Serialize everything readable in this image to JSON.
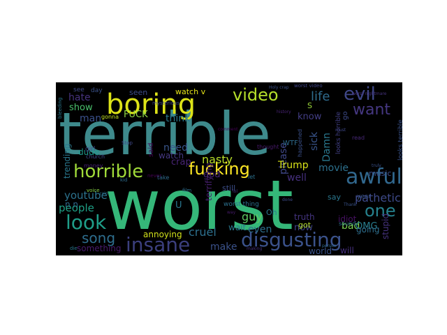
{
  "words": [
    {
      "text": "terrible",
      "color": "#3e8a8c"
    },
    {
      "text": "worst",
      "color": "#35b779"
    },
    {
      "text": "boring",
      "color": "#dde318"
    },
    {
      "text": "video",
      "color": "#b5de2b"
    },
    {
      "text": "evil",
      "color": "#3f4788"
    },
    {
      "text": "want",
      "color": "#453781"
    },
    {
      "text": "fucking",
      "color": "#fde725"
    },
    {
      "text": "horrible",
      "color": "#a0da39"
    },
    {
      "text": "awful",
      "color": "#31688e"
    },
    {
      "text": "disgusting",
      "color": "#3b528b"
    },
    {
      "text": "insane",
      "color": "#3b3f7d"
    },
    {
      "text": "look",
      "color": "#1f9e89"
    },
    {
      "text": "song",
      "color": "#2e6e8e"
    },
    {
      "text": "one",
      "color": "#26828e"
    },
    {
      "text": "youtube",
      "color": "#2c728e"
    },
    {
      "text": "people",
      "color": "#1fa187"
    },
    {
      "text": "pathetic",
      "color": "#3e4a89"
    },
    {
      "text": "life",
      "color": "#2f6c8e"
    },
    {
      "text": "hate",
      "color": "#46337e"
    },
    {
      "text": "show",
      "color": "#4ac16d"
    },
    {
      "text": "man",
      "color": "#3b518b"
    },
    {
      "text": "FUCK",
      "color": "#8fd744"
    },
    {
      "text": "think",
      "color": "#2a788e"
    },
    {
      "text": "need",
      "color": "#39568c"
    },
    {
      "text": "nasty",
      "color": "#b8de29"
    },
    {
      "text": "crap",
      "color": "#482475"
    },
    {
      "text": "sick",
      "color": "#39558c"
    },
    {
      "text": "Damn",
      "color": "#2a788e"
    },
    {
      "text": "know",
      "color": "#433e85"
    },
    {
      "text": "please",
      "color": "#3f4889"
    },
    {
      "text": "Trump",
      "color": "#d8e219"
    },
    {
      "text": "movie",
      "color": "#2d718e"
    },
    {
      "text": "well",
      "color": "#46307e"
    },
    {
      "text": "god",
      "color": "#482576"
    },
    {
      "text": "guy",
      "color": "#5ec962"
    },
    {
      "text": "even",
      "color": "#2e6f8e"
    },
    {
      "text": "bad",
      "color": "#7ad151"
    },
    {
      "text": "OMG",
      "color": "#287d8e"
    },
    {
      "text": "cruel",
      "color": "#2d708e"
    },
    {
      "text": "make",
      "color": "#3b528b"
    },
    {
      "text": "now",
      "color": "#404588"
    },
    {
      "text": "annoying",
      "color": "#d2e21b"
    },
    {
      "text": "something",
      "color": "#481a6c"
    },
    {
      "text": "wait",
      "color": "#2a788e"
    },
    {
      "text": "world",
      "color": "#3a538b"
    },
    {
      "text": "will",
      "color": "#46307e"
    },
    {
      "text": "going",
      "color": "#2e6e8e"
    },
    {
      "text": "stupid",
      "color": "#46337f"
    },
    {
      "text": "idiot",
      "color": "#471164"
    },
    {
      "text": "truth",
      "color": "#453581"
    },
    {
      "text": "got",
      "color": "#b5de2b"
    },
    {
      "text": "say",
      "color": "#2a778e"
    },
    {
      "text": "still",
      "color": "#3c4f8a"
    },
    {
      "text": "terrifying",
      "color": "#481f70"
    },
    {
      "text": "trending",
      "color": "#2a788e"
    },
    {
      "text": "dude",
      "color": "#1f988b"
    },
    {
      "text": "watch",
      "color": "#453882"
    },
    {
      "text": "watch v",
      "color": "#e5e419"
    },
    {
      "text": "seen",
      "color": "#3d4d8a"
    },
    {
      "text": "music",
      "color": "#3c4f8a"
    },
    {
      "text": "U",
      "color": "#2a768e"
    },
    {
      "text": "n n",
      "color": "#2f6b8e"
    },
    {
      "text": "S",
      "color": "#9dd93b"
    },
    {
      "text": "worst thing",
      "color": "#2c718e"
    },
    {
      "text": "looks terrible",
      "color": "#3a538b"
    },
    {
      "text": "looks horrible",
      "color": "#424086"
    },
    {
      "text": "Oh",
      "color": "#2a788e"
    },
    {
      "text": "go",
      "color": "#3e4c8a"
    },
    {
      "text": "said",
      "color": "#440154"
    },
    {
      "text": "girl",
      "color": "#3f4788"
    },
    {
      "text": "year",
      "color": "#3a548c"
    },
    {
      "text": "WTF",
      "color": "#2f6c8e"
    },
    {
      "text": "see",
      "color": "#3e4a89"
    },
    {
      "text": "day",
      "color": "#3b528b"
    },
    {
      "text": "church",
      "color": "#3f4889"
    },
    {
      "text": "money",
      "color": "#482173"
    },
    {
      "text": "gonna",
      "color": "#c2df23"
    },
    {
      "text": "let",
      "color": "#2c728e"
    },
    {
      "text": "thought",
      "color": "#481a6c"
    },
    {
      "text": "happened",
      "color": "#3b518b"
    },
    {
      "text": "read",
      "color": "#482878"
    },
    {
      "text": "sound",
      "color": "#2e6d8e"
    },
    {
      "text": "worst video",
      "color": "#404688"
    },
    {
      "text": "mysterious",
      "color": "#3f4788"
    },
    {
      "text": "take",
      "color": "#2f6b8e"
    },
    {
      "text": "Stop",
      "color": "#3f4889"
    },
    {
      "text": "kid",
      "color": "#2e6d8e"
    },
    {
      "text": "never",
      "color": "#440154"
    },
    {
      "text": "Holy crap",
      "color": "#3b528b"
    },
    {
      "text": "worst nightmare",
      "color": "#46337e"
    },
    {
      "text": "voice",
      "color": "#8bd646"
    },
    {
      "text": "die",
      "color": "#2a778e"
    },
    {
      "text": "way",
      "color": "#481b6d"
    },
    {
      "text": "done",
      "color": "#3e4c8a"
    },
    {
      "text": "making",
      "color": "#46327e"
    },
    {
      "text": "person",
      "color": "#31688e"
    },
    {
      "text": "Thank",
      "color": "#3a538b"
    },
    {
      "text": "history",
      "color": "#482374"
    },
    {
      "text": "comment",
      "color": "#440154"
    },
    {
      "text": "truly",
      "color": "#3b528b"
    },
    {
      "text": "film",
      "color": "#2e6f8e"
    },
    {
      "text": "lol",
      "color": "#46337e"
    },
    {
      "text": "rain",
      "color": "#2c728e"
    },
    {
      "text": "must",
      "color": "#3f4889"
    },
    {
      "text": "bleeding",
      "color": "#2a788e"
    }
  ]
}
